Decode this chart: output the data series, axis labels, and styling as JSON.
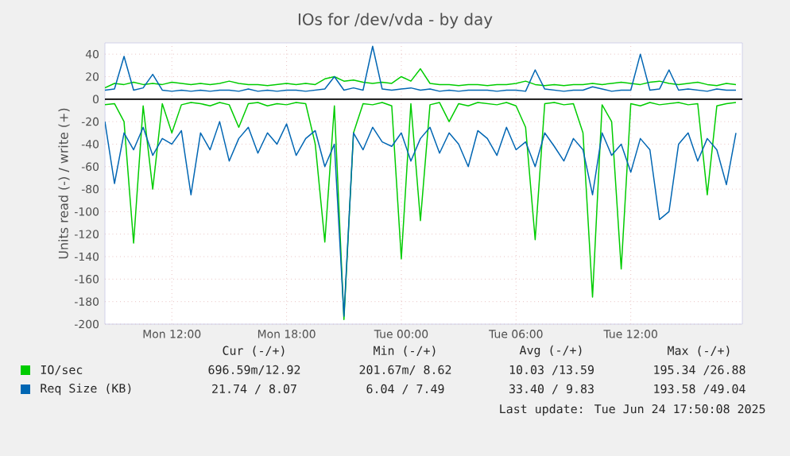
{
  "chart_data": {
    "type": "line",
    "title": "IOs for /dev/vda - by day",
    "ylabel": "Units read (-) / write (+)",
    "x": [
      "2025-06-23T08:30",
      "2025-06-23T09:00",
      "2025-06-23T09:30",
      "2025-06-23T10:00",
      "2025-06-23T10:30",
      "2025-06-23T11:00",
      "2025-06-23T11:30",
      "2025-06-23T12:00",
      "2025-06-23T12:30",
      "2025-06-23T13:00",
      "2025-06-23T13:30",
      "2025-06-23T14:00",
      "2025-06-23T14:30",
      "2025-06-23T15:00",
      "2025-06-23T15:30",
      "2025-06-23T16:00",
      "2025-06-23T16:30",
      "2025-06-23T17:00",
      "2025-06-23T17:30",
      "2025-06-23T18:00",
      "2025-06-23T18:30",
      "2025-06-23T19:00",
      "2025-06-23T19:30",
      "2025-06-23T20:00",
      "2025-06-23T20:30",
      "2025-06-23T21:00",
      "2025-06-23T21:30",
      "2025-06-23T22:00",
      "2025-06-23T22:30",
      "2025-06-23T23:00",
      "2025-06-23T23:30",
      "2025-06-24T00:00",
      "2025-06-24T00:30",
      "2025-06-24T01:00",
      "2025-06-24T01:30",
      "2025-06-24T02:00",
      "2025-06-24T02:30",
      "2025-06-24T03:00",
      "2025-06-24T03:30",
      "2025-06-24T04:00",
      "2025-06-24T04:30",
      "2025-06-24T05:00",
      "2025-06-24T05:30",
      "2025-06-24T06:00",
      "2025-06-24T06:30",
      "2025-06-24T07:00",
      "2025-06-24T07:30",
      "2025-06-24T08:00",
      "2025-06-24T08:30",
      "2025-06-24T09:00",
      "2025-06-24T09:30",
      "2025-06-24T10:00",
      "2025-06-24T10:30",
      "2025-06-24T11:00",
      "2025-06-24T11:30",
      "2025-06-24T12:00",
      "2025-06-24T12:30",
      "2025-06-24T13:00",
      "2025-06-24T13:30",
      "2025-06-24T14:00",
      "2025-06-24T14:30",
      "2025-06-24T15:00",
      "2025-06-24T15:30",
      "2025-06-24T16:00",
      "2025-06-24T16:30",
      "2025-06-24T17:00",
      "2025-06-24T17:30"
    ],
    "series": [
      {
        "name": "IO/sec",
        "color": "#00cc00",
        "values": [
          10,
          14,
          13,
          15,
          13,
          14,
          13,
          15,
          14,
          13,
          14,
          13,
          14,
          16,
          14,
          13,
          13,
          12,
          13,
          14,
          13,
          14,
          13,
          18,
          20,
          16,
          17,
          15,
          14,
          15,
          14,
          20,
          16,
          27,
          14,
          13,
          13,
          12,
          13,
          13,
          12,
          13,
          13,
          14,
          16,
          13,
          12,
          13,
          12,
          13,
          13,
          14,
          13,
          14,
          15,
          14,
          13,
          15,
          16,
          14,
          13,
          14,
          15,
          13,
          12,
          14,
          13
        ]
      },
      {
        "color": "#00cc00",
        "values": [
          -5,
          -4,
          -20,
          -128,
          -6,
          -80,
          -4,
          -30,
          -5,
          -3,
          -4,
          -6,
          -3,
          -5,
          -25,
          -4,
          -3,
          -6,
          -4,
          -5,
          -3,
          -4,
          -40,
          -127,
          -6,
          -196,
          -30,
          -4,
          -5,
          -3,
          -6,
          -142,
          -4,
          -108,
          -5,
          -3,
          -20,
          -4,
          -6,
          -3,
          -4,
          -5,
          -3,
          -6,
          -25,
          -125,
          -4,
          -3,
          -5,
          -4,
          -30,
          -176,
          -5,
          -20,
          -151,
          -4,
          -6,
          -3,
          -5,
          -4,
          -3,
          -5,
          -4,
          -85,
          -6,
          -4,
          -3
        ]
      },
      {
        "name": "Req Size (KB)",
        "color": "#0066b3",
        "values": [
          8,
          9,
          38,
          8,
          10,
          22,
          8,
          7,
          8,
          7,
          8,
          7,
          8,
          8,
          7,
          9,
          7,
          8,
          7,
          8,
          8,
          7,
          8,
          9,
          20,
          8,
          10,
          8,
          47,
          9,
          8,
          9,
          10,
          8,
          9,
          7,
          8,
          7,
          8,
          8,
          8,
          7,
          8,
          8,
          7,
          26,
          9,
          8,
          7,
          8,
          8,
          11,
          9,
          7,
          8,
          8,
          40,
          8,
          9,
          26,
          8,
          9,
          8,
          7,
          9,
          8,
          8
        ]
      },
      {
        "color": "#0066b3",
        "values": [
          -20,
          -75,
          -30,
          -45,
          -25,
          -50,
          -35,
          -40,
          -28,
          -85,
          -30,
          -45,
          -20,
          -55,
          -35,
          -25,
          -48,
          -30,
          -40,
          -22,
          -50,
          -35,
          -28,
          -60,
          -40,
          -193,
          -30,
          -45,
          -25,
          -38,
          -42,
          -30,
          -55,
          -35,
          -25,
          -48,
          -30,
          -40,
          -60,
          -28,
          -35,
          -50,
          -25,
          -45,
          -38,
          -60,
          -30,
          -42,
          -55,
          -35,
          -45,
          -85,
          -30,
          -50,
          -40,
          -65,
          -35,
          -45,
          -107,
          -100,
          -40,
          -30,
          -55,
          -35,
          -45,
          -76,
          -30
        ]
      }
    ],
    "xlim": [
      "2025-06-23T08:30",
      "2025-06-24T17:50"
    ],
    "ylim": [
      -200,
      50
    ],
    "xticks": [
      {
        "value": "2025-06-23T12:00",
        "label": "Mon 12:00"
      },
      {
        "value": "2025-06-23T18:00",
        "label": "Mon 18:00"
      },
      {
        "value": "2025-06-24T00:00",
        "label": "Tue 00:00"
      },
      {
        "value": "2025-06-24T06:00",
        "label": "Tue 06:00"
      },
      {
        "value": "2025-06-24T12:00",
        "label": "Tue 12:00"
      }
    ],
    "yticks": [
      -200,
      -180,
      -160,
      -140,
      -120,
      -100,
      -80,
      -60,
      -40,
      -20,
      0,
      20,
      40
    ],
    "ref_lines": [
      {
        "axis": "y",
        "value": 0,
        "color": "#000000"
      }
    ],
    "grid": true,
    "legend": "bottom",
    "annotations": [
      "Cur (-/+)",
      "Min (-/+)",
      "Avg (-/+)",
      "Max (-/+)",
      "696.59m/12.92",
      "201.67m/ 8.62",
      "10.03 /13.59",
      "195.34 /26.88",
      "21.74 / 8.07",
      "6.04 / 7.49",
      "33.40 / 9.83",
      "193.58 /49.04",
      "Last update: Tue Jun 24 17:50:08 2025"
    ]
  }
}
